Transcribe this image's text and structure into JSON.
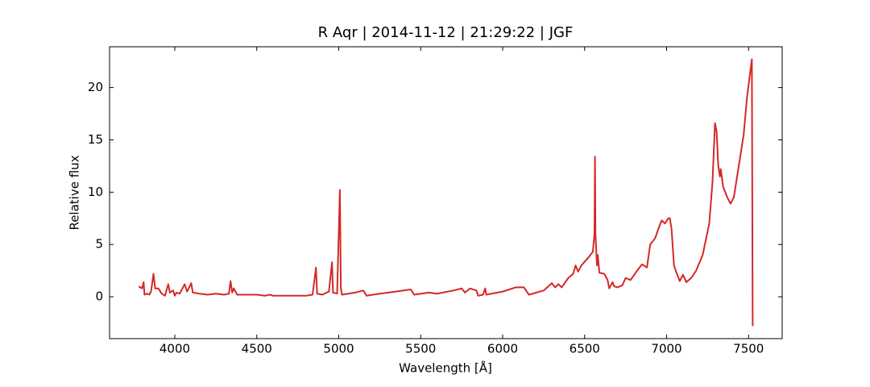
{
  "chart_data": {
    "type": "line",
    "title": "R Aqr | 2014-11-12 | 21:29:22 | JGF",
    "x_label": "Wavelength [Å]",
    "y_label": "Relative flux",
    "x": [
      3780,
      3800,
      3810,
      3815,
      3830,
      3845,
      3855,
      3870,
      3880,
      3900,
      3920,
      3940,
      3960,
      3970,
      3990,
      4000,
      4010,
      4030,
      4060,
      4075,
      4100,
      4110,
      4150,
      4200,
      4250,
      4300,
      4330,
      4340,
      4350,
      4360,
      4380,
      4450,
      4500,
      4550,
      4580,
      4600,
      4700,
      4800,
      4840,
      4855,
      4861,
      4868,
      4900,
      4940,
      4959,
      4965,
      4990,
      5000,
      5007,
      5013,
      5020,
      5100,
      5150,
      5170,
      5250,
      5350,
      5440,
      5460,
      5550,
      5600,
      5700,
      5750,
      5770,
      5800,
      5840,
      5850,
      5880,
      5893,
      5900,
      6000,
      6080,
      6130,
      6160,
      6250,
      6300,
      6320,
      6340,
      6360,
      6400,
      6430,
      6445,
      6460,
      6480,
      6520,
      6550,
      6560,
      6563,
      6566,
      6575,
      6580,
      6590,
      6620,
      6640,
      6650,
      6670,
      6680,
      6700,
      6730,
      6750,
      6780,
      6820,
      6850,
      6880,
      6900,
      6930,
      6950,
      6970,
      6990,
      7010,
      7020,
      7030,
      7045,
      7060,
      7080,
      7100,
      7120,
      7150,
      7180,
      7220,
      7240,
      7260,
      7280,
      7295,
      7305,
      7315,
      7325,
      7330,
      7345,
      7370,
      7390,
      7410,
      7440,
      7470,
      7490,
      7510,
      7520,
      7525
    ],
    "series": [
      {
        "name": "R Aqr",
        "color": "#d62728",
        "values": [
          1.0,
          0.8,
          1.4,
          0.2,
          0.3,
          0.2,
          0.5,
          2.2,
          0.8,
          0.8,
          0.3,
          0.1,
          1.2,
          0.4,
          0.6,
          0.1,
          0.4,
          0.3,
          1.2,
          0.5,
          1.3,
          0.4,
          0.3,
          0.2,
          0.3,
          0.2,
          0.3,
          1.5,
          0.4,
          0.8,
          0.2,
          0.2,
          0.2,
          0.1,
          0.2,
          0.1,
          0.1,
          0.1,
          0.2,
          2.0,
          2.8,
          0.3,
          0.2,
          0.5,
          3.3,
          0.4,
          0.3,
          6.0,
          10.2,
          0.8,
          0.2,
          0.4,
          0.6,
          0.1,
          0.3,
          0.5,
          0.7,
          0.2,
          0.4,
          0.3,
          0.6,
          0.8,
          0.4,
          0.8,
          0.6,
          0.1,
          0.2,
          0.8,
          0.2,
          0.5,
          0.9,
          0.9,
          0.2,
          0.6,
          1.3,
          0.9,
          1.2,
          0.9,
          1.8,
          2.2,
          3.0,
          2.4,
          3.0,
          3.7,
          4.3,
          6.0,
          13.4,
          6.0,
          3.0,
          4.0,
          2.3,
          2.2,
          1.6,
          0.8,
          1.4,
          1.0,
          0.9,
          1.1,
          1.8,
          1.6,
          2.5,
          3.1,
          2.8,
          5.0,
          5.6,
          6.5,
          7.3,
          7.0,
          7.5,
          7.5,
          6.5,
          3.0,
          2.3,
          1.5,
          2.1,
          1.4,
          1.8,
          2.5,
          4.0,
          5.5,
          7.0,
          11.0,
          16.6,
          15.8,
          12.5,
          11.5,
          12.2,
          10.5,
          9.5,
          8.9,
          9.5,
          12.5,
          15.5,
          19.0,
          21.5,
          22.7,
          -2.8
        ]
      }
    ],
    "xlim": [
      3602,
      7705
    ],
    "ylim": [
      -4,
      23.9
    ],
    "xticks": [
      4000,
      4500,
      5000,
      5500,
      6000,
      6500,
      7000,
      7500
    ],
    "yticks": [
      0,
      5,
      10,
      15,
      20
    ]
  }
}
